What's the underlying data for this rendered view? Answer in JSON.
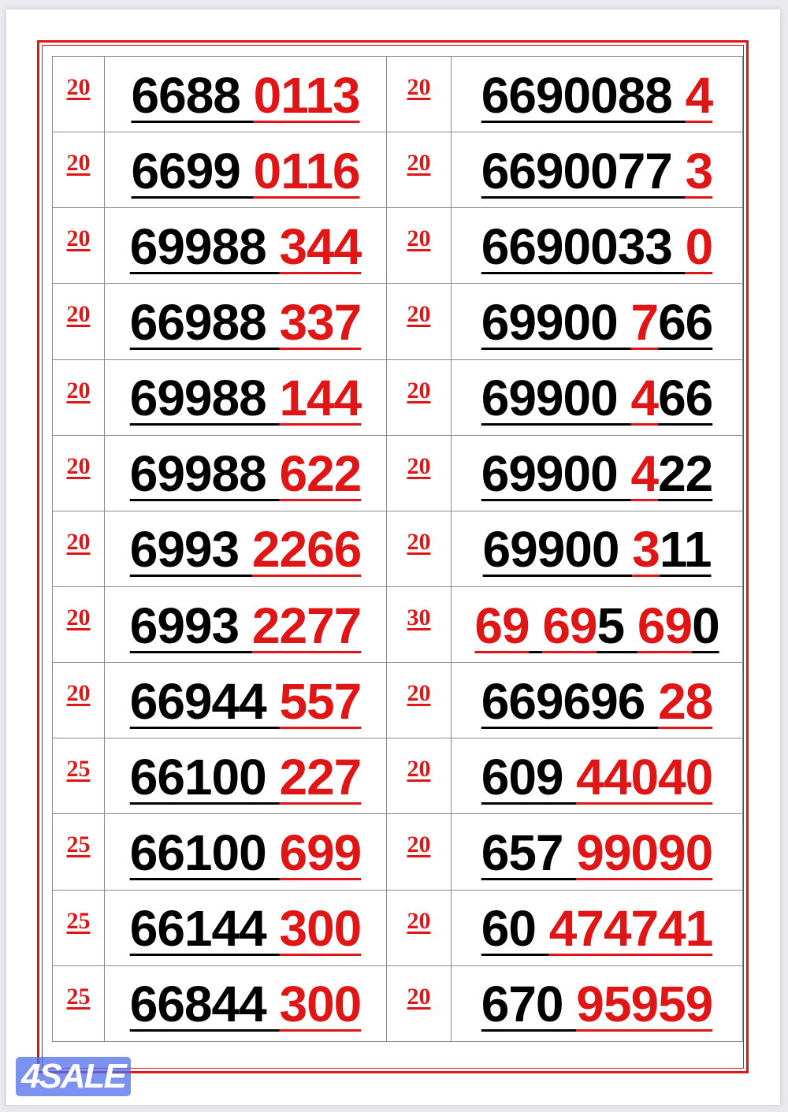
{
  "colors": {
    "red": "#e01515",
    "black": "#000000"
  },
  "watermark": "4SALE",
  "rows": [
    {
      "left": {
        "price": "20",
        "segments": [
          {
            "t": "6688 ",
            "c": "black"
          },
          {
            "t": "0113",
            "c": "red"
          }
        ]
      },
      "right": {
        "price": "20",
        "segments": [
          {
            "t": "6690088 ",
            "c": "black"
          },
          {
            "t": "4",
            "c": "red"
          }
        ]
      }
    },
    {
      "left": {
        "price": "20",
        "segments": [
          {
            "t": "6699 ",
            "c": "black"
          },
          {
            "t": "0116",
            "c": "red"
          }
        ]
      },
      "right": {
        "price": "20",
        "segments": [
          {
            "t": "6690077 ",
            "c": "black"
          },
          {
            "t": "3",
            "c": "red"
          }
        ]
      }
    },
    {
      "left": {
        "price": "20",
        "segments": [
          {
            "t": "69988 ",
            "c": "black"
          },
          {
            "t": "344",
            "c": "red"
          }
        ]
      },
      "right": {
        "price": "20",
        "segments": [
          {
            "t": "6690033 ",
            "c": "black"
          },
          {
            "t": "0",
            "c": "red"
          }
        ]
      }
    },
    {
      "left": {
        "price": "20",
        "segments": [
          {
            "t": "66988 ",
            "c": "black"
          },
          {
            "t": "337",
            "c": "red"
          }
        ]
      },
      "right": {
        "price": "20",
        "segments": [
          {
            "t": "69900 ",
            "c": "black"
          },
          {
            "t": "7",
            "c": "red"
          },
          {
            "t": "66",
            "c": "black"
          }
        ]
      }
    },
    {
      "left": {
        "price": "20",
        "segments": [
          {
            "t": "69988 ",
            "c": "black"
          },
          {
            "t": "144",
            "c": "red"
          }
        ]
      },
      "right": {
        "price": "20",
        "segments": [
          {
            "t": "69900 ",
            "c": "black"
          },
          {
            "t": "4",
            "c": "red"
          },
          {
            "t": "66",
            "c": "black"
          }
        ]
      }
    },
    {
      "left": {
        "price": "20",
        "segments": [
          {
            "t": "69988 ",
            "c": "black"
          },
          {
            "t": "622",
            "c": "red"
          }
        ]
      },
      "right": {
        "price": "20",
        "segments": [
          {
            "t": "69900 ",
            "c": "black"
          },
          {
            "t": "4",
            "c": "red"
          },
          {
            "t": "22",
            "c": "black"
          }
        ]
      }
    },
    {
      "left": {
        "price": "20",
        "segments": [
          {
            "t": "6993 ",
            "c": "black"
          },
          {
            "t": "2266",
            "c": "red"
          }
        ]
      },
      "right": {
        "price": "20",
        "segments": [
          {
            "t": "69900 ",
            "c": "black"
          },
          {
            "t": "3",
            "c": "red"
          },
          {
            "t": "11",
            "c": "black"
          }
        ]
      }
    },
    {
      "left": {
        "price": "20",
        "segments": [
          {
            "t": "6993 ",
            "c": "black"
          },
          {
            "t": "2277",
            "c": "red"
          }
        ]
      },
      "right": {
        "price": "30",
        "segments": [
          {
            "t": "69",
            "c": "red"
          },
          {
            "t": " ",
            "c": "black"
          },
          {
            "t": "69",
            "c": "red"
          },
          {
            "t": "5 ",
            "c": "black"
          },
          {
            "t": "69",
            "c": "red"
          },
          {
            "t": "0",
            "c": "black"
          }
        ]
      }
    },
    {
      "left": {
        "price": "20",
        "segments": [
          {
            "t": "66944 ",
            "c": "black"
          },
          {
            "t": "557",
            "c": "red"
          }
        ]
      },
      "right": {
        "price": "20",
        "segments": [
          {
            "t": "669696 ",
            "c": "black"
          },
          {
            "t": "28",
            "c": "red"
          }
        ]
      }
    },
    {
      "left": {
        "price": "25",
        "segments": [
          {
            "t": "66100 ",
            "c": "black"
          },
          {
            "t": "227",
            "c": "red"
          }
        ]
      },
      "right": {
        "price": "20",
        "segments": [
          {
            "t": "609 ",
            "c": "black"
          },
          {
            "t": "44040",
            "c": "red"
          }
        ]
      }
    },
    {
      "left": {
        "price": "25",
        "segments": [
          {
            "t": "66100 ",
            "c": "black"
          },
          {
            "t": "699",
            "c": "red"
          }
        ]
      },
      "right": {
        "price": "20",
        "segments": [
          {
            "t": "657 ",
            "c": "black"
          },
          {
            "t": "99090",
            "c": "red"
          }
        ]
      }
    },
    {
      "left": {
        "price": "25",
        "segments": [
          {
            "t": "66144 ",
            "c": "black"
          },
          {
            "t": "300",
            "c": "red"
          }
        ]
      },
      "right": {
        "price": "20",
        "segments": [
          {
            "t": "60 ",
            "c": "black"
          },
          {
            "t": "474741",
            "c": "red"
          }
        ]
      }
    },
    {
      "left": {
        "price": "25",
        "segments": [
          {
            "t": "66844 ",
            "c": "black"
          },
          {
            "t": "300",
            "c": "red"
          }
        ]
      },
      "right": {
        "price": "20",
        "segments": [
          {
            "t": "670 ",
            "c": "black"
          },
          {
            "t": "95959",
            "c": "red"
          }
        ]
      }
    }
  ]
}
